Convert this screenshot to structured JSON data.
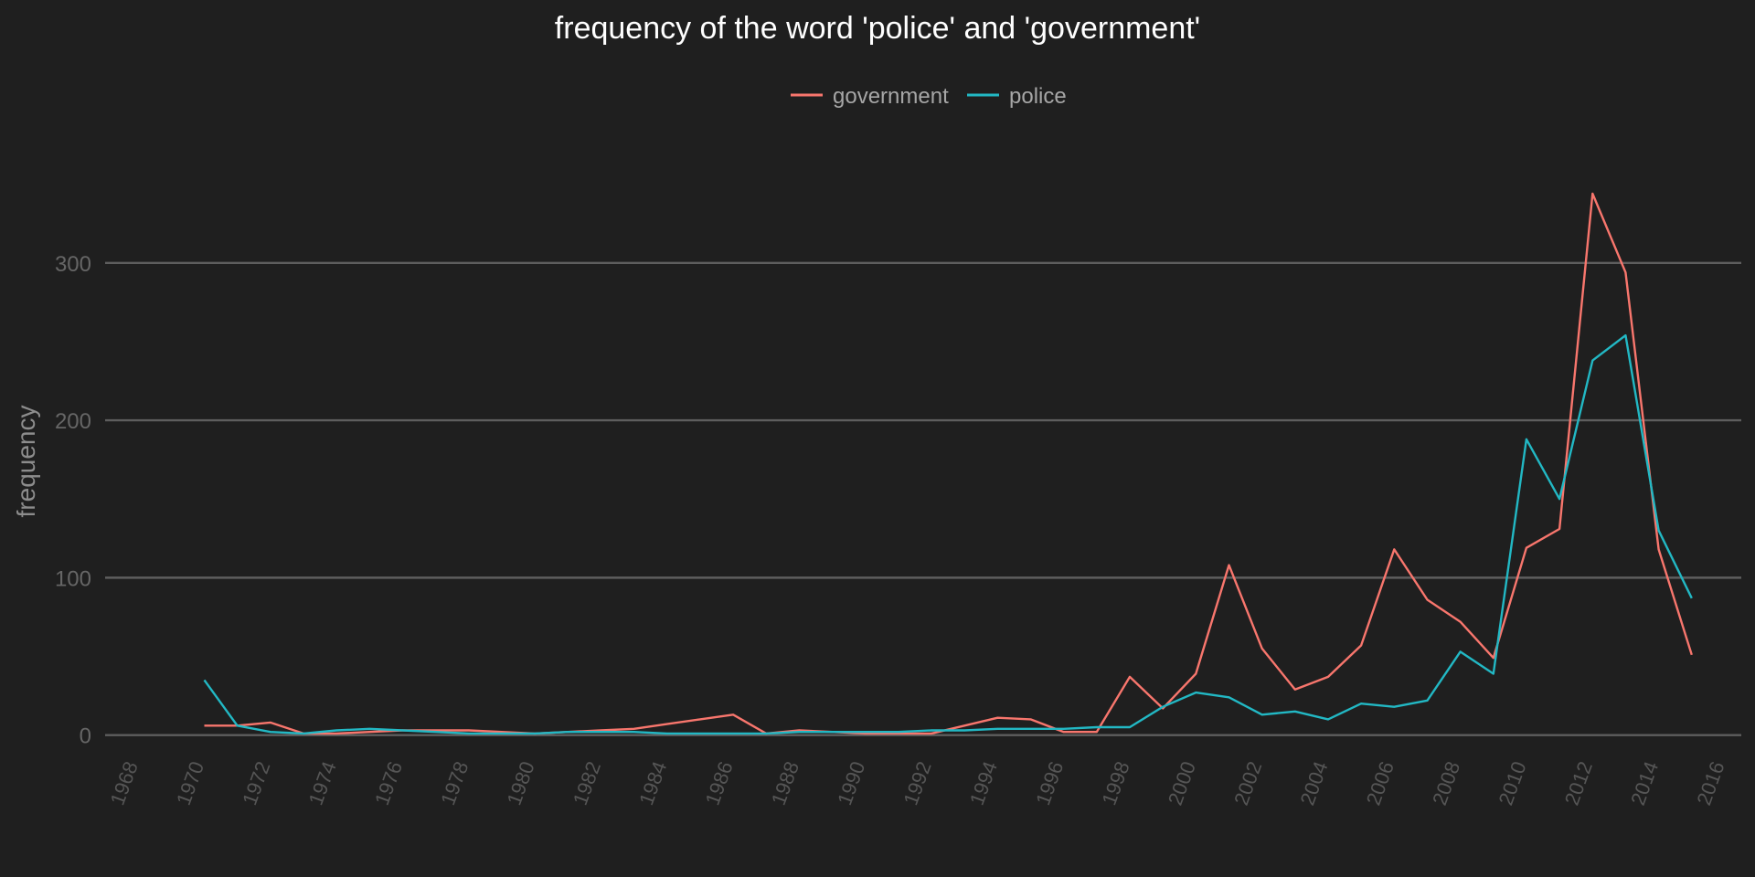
{
  "chart_data": {
    "type": "line",
    "title": "frequency of the word 'police' and 'government'",
    "xlabel": "",
    "ylabel": "frequency",
    "xlim": [
      1967,
      2016.5
    ],
    "ylim": [
      -6,
      380
    ],
    "yticks": [
      0,
      100,
      200,
      300
    ],
    "xticks": [
      1968,
      1970,
      1972,
      1974,
      1976,
      1978,
      1980,
      1982,
      1984,
      1986,
      1988,
      1990,
      1992,
      1994,
      1996,
      1998,
      2000,
      2002,
      2004,
      2006,
      2008,
      2010,
      2012,
      2014,
      2016
    ],
    "grid": true,
    "legend_position": "top",
    "x": [
      1970,
      1971,
      1972,
      1973,
      1974,
      1975,
      1976,
      1977,
      1978,
      1979,
      1980,
      1981,
      1982,
      1983,
      1984,
      1985,
      1986,
      1987,
      1988,
      1989,
      1990,
      1991,
      1992,
      1993,
      1994,
      1995,
      1996,
      1997,
      1998,
      1999,
      2000,
      2001,
      2002,
      2003,
      2004,
      2005,
      2006,
      2007,
      2008,
      2009,
      2010,
      2011,
      2012,
      2013,
      2014,
      2015
    ],
    "series": [
      {
        "name": "government",
        "color": "#f8766d",
        "values": [
          6,
          6,
          8,
          1,
          1,
          2,
          3,
          3,
          3,
          2,
          1,
          2,
          3,
          4,
          7,
          10,
          13,
          1,
          3,
          2,
          1,
          1,
          1,
          6,
          11,
          10,
          2,
          2,
          37,
          17,
          39,
          108,
          55,
          29,
          37,
          57,
          118,
          86,
          72,
          49,
          119,
          131,
          344,
          294,
          118,
          51
        ]
      },
      {
        "name": "police",
        "color": "#22b8c4",
        "values": [
          35,
          6,
          2,
          1,
          3,
          4,
          3,
          2,
          1,
          1,
          1,
          2,
          2,
          2,
          1,
          1,
          1,
          1,
          2,
          2,
          2,
          2,
          3,
          3,
          4,
          4,
          4,
          5,
          5,
          18,
          27,
          24,
          13,
          15,
          10,
          20,
          18,
          22,
          53,
          39,
          188,
          150,
          238,
          254,
          130,
          87
        ]
      }
    ]
  }
}
